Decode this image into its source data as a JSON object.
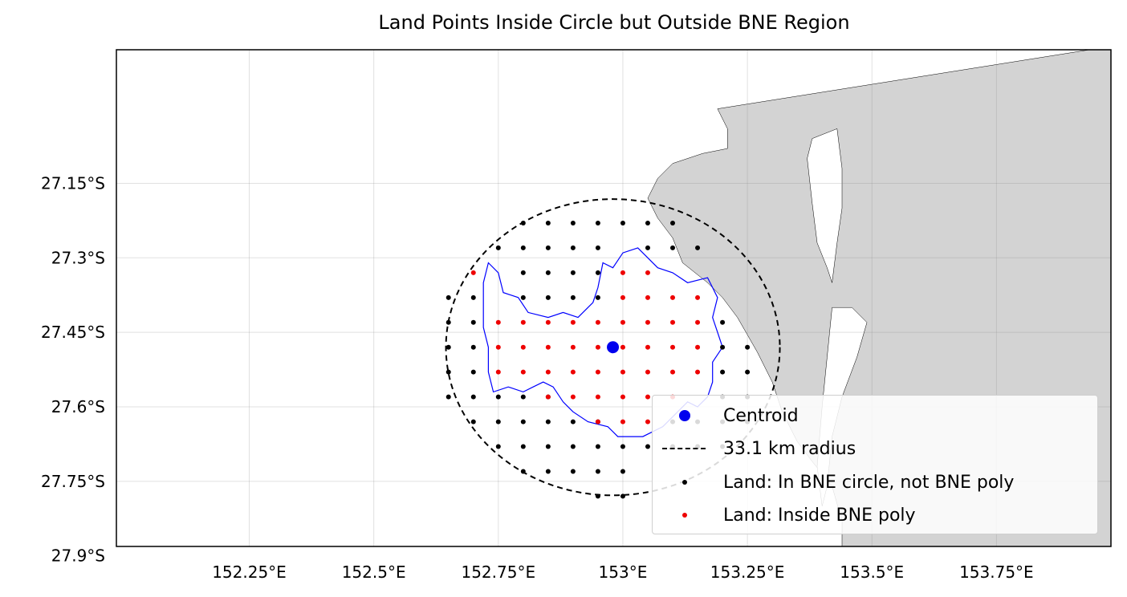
{
  "chart_data": {
    "type": "scatter",
    "title": "Land Points Inside Circle but Outside BNE Region",
    "x_ticks": [
      {
        "value": 152.25,
        "label": "152.25°E"
      },
      {
        "value": 152.5,
        "label": "152.5°E"
      },
      {
        "value": 152.75,
        "label": "152.75°E"
      },
      {
        "value": 153.0,
        "label": "153°E"
      },
      {
        "value": 153.25,
        "label": "153.25°E"
      },
      {
        "value": 153.5,
        "label": "153.5°E"
      },
      {
        "value": 153.75,
        "label": "153.75°E"
      }
    ],
    "y_ticks": [
      {
        "value": -27.15,
        "label": "27.15°S"
      },
      {
        "value": -27.3,
        "label": "27.3°S"
      },
      {
        "value": -27.45,
        "label": "27.45°S"
      },
      {
        "value": -27.6,
        "label": "27.6°S"
      },
      {
        "value": -27.75,
        "label": "27.75°S"
      },
      {
        "value": -27.9,
        "label": "27.9°S"
      }
    ],
    "xlim": [
      152.0,
      154.0
    ],
    "ylim": [
      -28.0,
      -27.0
    ],
    "grid": true,
    "legend_position": "lower-right",
    "colors": {
      "centroid": "#0000ee",
      "outside_points": "#000000",
      "inside_points": "#ee0000",
      "polygon": "#0000ff",
      "land": "#d3d3d3"
    },
    "centroid": {
      "lon": 152.98,
      "lat": -27.48
    },
    "radius_km": 33.1,
    "grid_spacing_deg": 0.05,
    "outside_rows": [
      {
        "lat": -27.23,
        "lons": [
          152.8,
          152.85,
          152.9,
          152.95,
          153.0,
          153.05,
          153.1
        ]
      },
      {
        "lat": -27.28,
        "lons": [
          152.75,
          152.8,
          152.85,
          152.9,
          152.95,
          153.05,
          153.1,
          153.15
        ]
      },
      {
        "lat": -27.33,
        "lons": [
          152.8,
          152.85,
          152.9,
          152.95
        ]
      },
      {
        "lat": -27.38,
        "lons": [
          152.65,
          152.7,
          152.8,
          152.85,
          152.9,
          152.95
        ]
      },
      {
        "lat": -27.43,
        "lons": [
          152.65,
          152.7,
          153.2
        ]
      },
      {
        "lat": -27.48,
        "lons": [
          152.65,
          152.7,
          153.2,
          153.25
        ]
      },
      {
        "lat": -27.53,
        "lons": [
          152.65,
          152.7,
          153.2,
          153.25
        ]
      },
      {
        "lat": -27.58,
        "lons": [
          152.65,
          152.7,
          152.75,
          152.8,
          152.85,
          153.2,
          153.25
        ]
      },
      {
        "lat": -27.63,
        "lons": [
          152.7,
          152.75,
          152.8,
          152.85,
          152.9,
          152.95,
          153.1,
          153.15,
          153.2,
          153.25
        ]
      },
      {
        "lat": -27.68,
        "lons": [
          152.75,
          152.8,
          152.85,
          152.9,
          152.95,
          153.0,
          153.05,
          153.1,
          153.15,
          153.2
        ]
      },
      {
        "lat": -27.73,
        "lons": [
          152.8,
          152.85,
          152.9,
          152.95,
          153.0
        ]
      },
      {
        "lat": -27.78,
        "lons": [
          152.95,
          153.0
        ]
      }
    ],
    "inside_rows": [
      {
        "lat": -27.33,
        "lons": [
          152.7,
          153.0,
          153.05
        ]
      },
      {
        "lat": -27.38,
        "lons": [
          153.0,
          153.05,
          153.1,
          153.15
        ]
      },
      {
        "lat": -27.43,
        "lons": [
          152.75,
          152.8,
          152.85,
          152.9,
          152.95,
          153.0,
          153.05,
          153.1,
          153.15
        ]
      },
      {
        "lat": -27.48,
        "lons": [
          152.75,
          152.8,
          152.85,
          152.9,
          152.95,
          153.0,
          153.05,
          153.1,
          153.15
        ]
      },
      {
        "lat": -27.53,
        "lons": [
          152.75,
          152.8,
          152.85,
          152.9,
          152.95,
          153.0,
          153.05,
          153.1,
          153.15
        ]
      },
      {
        "lat": -27.58,
        "lons": [
          152.85,
          152.9,
          152.95,
          153.0,
          153.05,
          153.1
        ]
      },
      {
        "lat": -27.63,
        "lons": [
          152.95,
          153.0,
          153.05
        ]
      }
    ],
    "bne_polygon": [
      [
        152.73,
        -27.31
      ],
      [
        152.75,
        -27.33
      ],
      [
        152.76,
        -27.37
      ],
      [
        152.79,
        -27.38
      ],
      [
        152.81,
        -27.41
      ],
      [
        152.85,
        -27.42
      ],
      [
        152.88,
        -27.41
      ],
      [
        152.91,
        -27.42
      ],
      [
        152.94,
        -27.39
      ],
      [
        152.95,
        -27.36
      ],
      [
        152.96,
        -27.31
      ],
      [
        152.98,
        -27.32
      ],
      [
        153.0,
        -27.29
      ],
      [
        153.03,
        -27.28
      ],
      [
        153.05,
        -27.3
      ],
      [
        153.07,
        -27.32
      ],
      [
        153.1,
        -27.33
      ],
      [
        153.13,
        -27.35
      ],
      [
        153.17,
        -27.34
      ],
      [
        153.18,
        -27.36
      ],
      [
        153.19,
        -27.38
      ],
      [
        153.18,
        -27.42
      ],
      [
        153.19,
        -27.45
      ],
      [
        153.2,
        -27.48
      ],
      [
        153.18,
        -27.51
      ],
      [
        153.18,
        -27.55
      ],
      [
        153.17,
        -27.58
      ],
      [
        153.15,
        -27.6
      ],
      [
        153.13,
        -27.59
      ],
      [
        153.1,
        -27.62
      ],
      [
        153.08,
        -27.64
      ],
      [
        153.04,
        -27.66
      ],
      [
        152.99,
        -27.66
      ],
      [
        152.97,
        -27.64
      ],
      [
        152.93,
        -27.63
      ],
      [
        152.9,
        -27.61
      ],
      [
        152.88,
        -27.59
      ],
      [
        152.86,
        -27.56
      ],
      [
        152.84,
        -27.55
      ],
      [
        152.82,
        -27.56
      ],
      [
        152.8,
        -27.57
      ],
      [
        152.77,
        -27.56
      ],
      [
        152.74,
        -27.57
      ],
      [
        152.73,
        -27.53
      ],
      [
        152.73,
        -27.48
      ],
      [
        152.72,
        -27.44
      ],
      [
        152.72,
        -27.4
      ],
      [
        152.72,
        -27.35
      ]
    ],
    "land_mainland_edge": [
      [
        153.19,
        -27.0
      ],
      [
        153.21,
        -27.04
      ],
      [
        153.21,
        -27.08
      ],
      [
        153.16,
        -27.09
      ],
      [
        153.1,
        -27.11
      ],
      [
        153.07,
        -27.14
      ],
      [
        153.05,
        -27.18
      ],
      [
        153.07,
        -27.22
      ],
      [
        153.1,
        -27.26
      ],
      [
        153.12,
        -27.31
      ],
      [
        153.17,
        -27.35
      ],
      [
        153.2,
        -27.38
      ],
      [
        153.23,
        -27.42
      ],
      [
        153.27,
        -27.49
      ],
      [
        153.3,
        -27.55
      ],
      [
        153.32,
        -27.61
      ],
      [
        153.35,
        -27.67
      ],
      [
        153.38,
        -27.71
      ],
      [
        153.42,
        -27.76
      ],
      [
        153.44,
        -27.83
      ],
      [
        153.44,
        -27.92
      ],
      [
        153.42,
        -28.0
      ]
    ],
    "island_north": [
      [
        153.38,
        -27.06
      ],
      [
        153.43,
        -27.04
      ],
      [
        153.44,
        -27.12
      ],
      [
        153.44,
        -27.2
      ],
      [
        153.43,
        -27.27
      ],
      [
        153.42,
        -27.35
      ],
      [
        153.41,
        -27.32
      ],
      [
        153.39,
        -27.27
      ],
      [
        153.38,
        -27.19
      ],
      [
        153.37,
        -27.1
      ]
    ],
    "island_south": [
      [
        153.42,
        -27.4
      ],
      [
        153.46,
        -27.4
      ],
      [
        153.49,
        -27.43
      ],
      [
        153.47,
        -27.5
      ],
      [
        153.44,
        -27.58
      ],
      [
        153.42,
        -27.66
      ],
      [
        153.41,
        -27.76
      ],
      [
        153.4,
        -27.8
      ],
      [
        153.39,
        -27.72
      ],
      [
        153.4,
        -27.6
      ],
      [
        153.41,
        -27.5
      ]
    ]
  },
  "legend": {
    "items": [
      {
        "label": "Centroid"
      },
      {
        "label": "33.1 km radius"
      },
      {
        "label": "Land: In BNE circle, not BNE poly"
      },
      {
        "label": "Land: Inside BNE poly"
      }
    ]
  }
}
